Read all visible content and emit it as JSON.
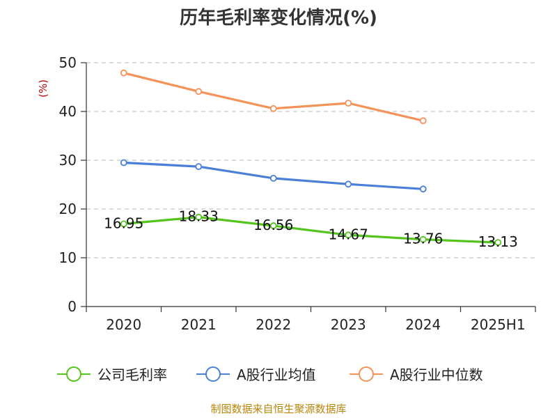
{
  "chart_data": {
    "type": "line",
    "title": "历年毛利率变化情况(%)",
    "ylabel": "(%)",
    "xlabel": "",
    "categories": [
      "2020",
      "2021",
      "2022",
      "2023",
      "2024",
      "2025H1"
    ],
    "ylim": [
      0,
      50
    ],
    "yticks": [
      0,
      10,
      20,
      30,
      40,
      50
    ],
    "grid": true,
    "legend_position": "bottom",
    "series": [
      {
        "name": "公司毛利率",
        "color": "#52c41a",
        "values": [
          16.95,
          18.33,
          16.56,
          14.67,
          13.76,
          13.13
        ],
        "labels": [
          "16.95",
          "18.33",
          "16.56",
          "14.67",
          "13.76",
          "13.13"
        ]
      },
      {
        "name": "A股行业均值",
        "color": "#4a7fd8",
        "values": [
          29.5,
          28.7,
          26.3,
          25.1,
          24.1,
          null
        ]
      },
      {
        "name": "A股行业中位数",
        "color": "#f59257",
        "values": [
          47.9,
          44.1,
          40.6,
          41.7,
          38.1,
          null
        ]
      }
    ],
    "source": "制图数据来自恒生聚源数据库"
  }
}
